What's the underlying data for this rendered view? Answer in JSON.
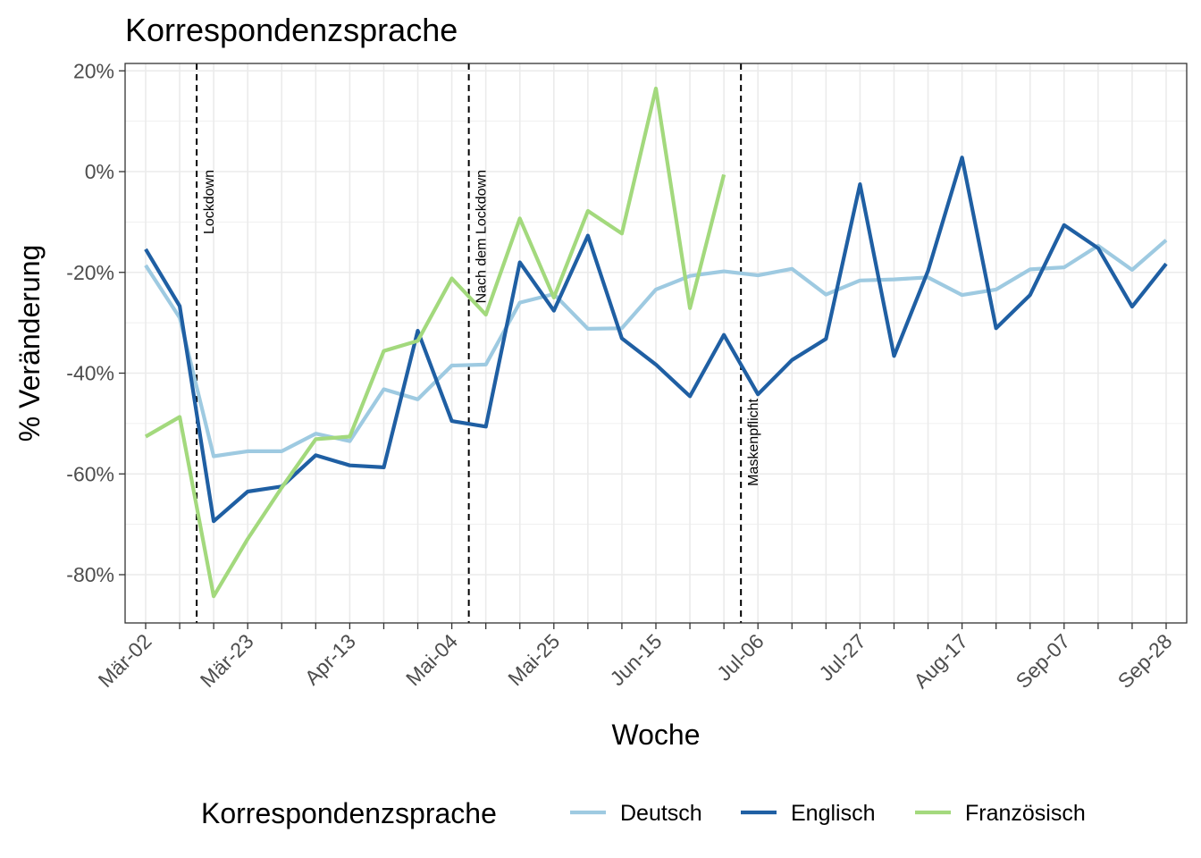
{
  "chart_data": {
    "type": "line",
    "title": "Korrespondenzsprache",
    "xlabel": "Woche",
    "ylabel": "% Veränderung",
    "ylim": [
      -90,
      22
    ],
    "y_ticks": [
      20,
      0,
      -20,
      -40,
      -60,
      -80
    ],
    "y_tick_labels": [
      "20%",
      "0%",
      "-20%",
      "-40%",
      "-60%",
      "-80%"
    ],
    "x_tick_labels": [
      "Mär-02",
      "Mär-23",
      "Apr-13",
      "Mai-04",
      "Mai-25",
      "Jun-15",
      "Jul-06",
      "Jul-27",
      "Aug-17",
      "Sep-07",
      "Sep-28"
    ],
    "x_tick_weeks": [
      0,
      3,
      6,
      9,
      12,
      15,
      18,
      21,
      24,
      27,
      30
    ],
    "legend_title": "Korrespondenzsprache",
    "legend_position": "bottom",
    "grid": true,
    "vlines": [
      {
        "week": 1.5,
        "label": "Lockdown"
      },
      {
        "week": 9.5,
        "label": "Nach dem Lockdown"
      },
      {
        "week": 17.5,
        "label": "Maskenpflicht"
      }
    ],
    "series": [
      {
        "name": "Deutsch",
        "color": "#9ecae1",
        "values": [
          -18.6,
          -29,
          -56.5,
          -55.5,
          -55.5,
          -52,
          -53.5,
          -43.2,
          -45.2,
          -38.5,
          -38.3,
          -26,
          -24.3,
          -31.2,
          -31.1,
          -23.4,
          -20.7,
          -19.8,
          -20.6,
          -19.3,
          -24.4,
          -21.6,
          -21.4,
          -21,
          -24.5,
          -23.4,
          -19.4,
          -19,
          -14.7,
          -19.5,
          -13.6
        ]
      },
      {
        "name": "Englisch",
        "color": "#1f5fa3",
        "values": [
          -15.4,
          -26.7,
          -69.4,
          -63.5,
          -62.5,
          -56.3,
          -58.3,
          -58.7,
          -31.6,
          -49.5,
          -50.6,
          -18,
          -27.6,
          -12.7,
          -33.1,
          -38.3,
          -44.6,
          -32.4,
          -44.2,
          -37.4,
          -33.2,
          -2.5,
          -36.6,
          -19.7,
          2.8,
          -31.1,
          -24.5,
          -10.6,
          -15.2,
          -26.8,
          -18.3
        ]
      },
      {
        "name": "Französisch",
        "color": "#a3d97d",
        "values": [
          -52.6,
          -48.7,
          -84.3,
          -72.9,
          -62.7,
          -53.1,
          -52.6,
          -35.6,
          -33.6,
          -21.2,
          -28.4,
          -9.3,
          -25,
          -7.8,
          -12.3,
          16.5,
          -27.1,
          -0.6,
          null,
          null,
          null,
          null,
          null,
          null,
          null,
          null,
          null,
          null,
          null,
          null,
          null
        ]
      }
    ]
  }
}
